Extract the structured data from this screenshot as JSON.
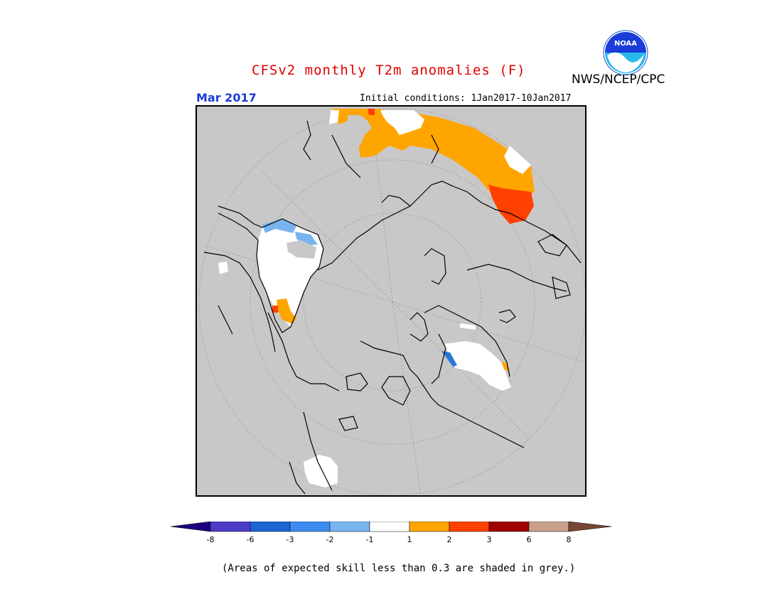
{
  "title": "CFSv2 monthly T2m anomalies (F)",
  "agency": "NWS/NCEP/CPC",
  "logo_text": "NOAA",
  "month": "Mar 2017",
  "initial_conditions": "Initial conditions: 1Jan2017-10Jan2017",
  "footnote": "(Areas of expected skill less than 0.3 are shaded in grey.)",
  "colors": {
    "no_skill_grey": "#c8c8c8",
    "near_normal": "#ffffff",
    "warm_1": "#ffa500",
    "warm_2": "#ff4000",
    "warm_3": "#a00000",
    "cool_1": "#78b4f0",
    "cool_2": "#2878d8",
    "title": "#e00000",
    "month": "#1a3cd8"
  },
  "legend": {
    "labels": [
      "-8",
      "-6",
      "-3",
      "-2",
      "-1",
      "1",
      "2",
      "3",
      "6",
      "8"
    ],
    "colors": [
      "#1e0080",
      "#4b3cc8",
      "#1e64d2",
      "#3c8cf0",
      "#78b4f0",
      "#ffffff",
      "#ffa500",
      "#ff4000",
      "#a00000",
      "#c8a08c",
      "#784632"
    ]
  },
  "map_regions": [
    {
      "name": "siberia-warm",
      "category": "1 to 2"
    },
    {
      "name": "east-siberia-hot",
      "category": "2 to 3"
    },
    {
      "name": "greenland-near-normal",
      "category": "-1 to 1"
    },
    {
      "name": "greenland-cool",
      "category": "-2 to -1"
    },
    {
      "name": "scandinavia-near-normal",
      "category": "-1 to 1"
    },
    {
      "name": "north-america-near-normal",
      "category": "-1 to 1"
    }
  ]
}
